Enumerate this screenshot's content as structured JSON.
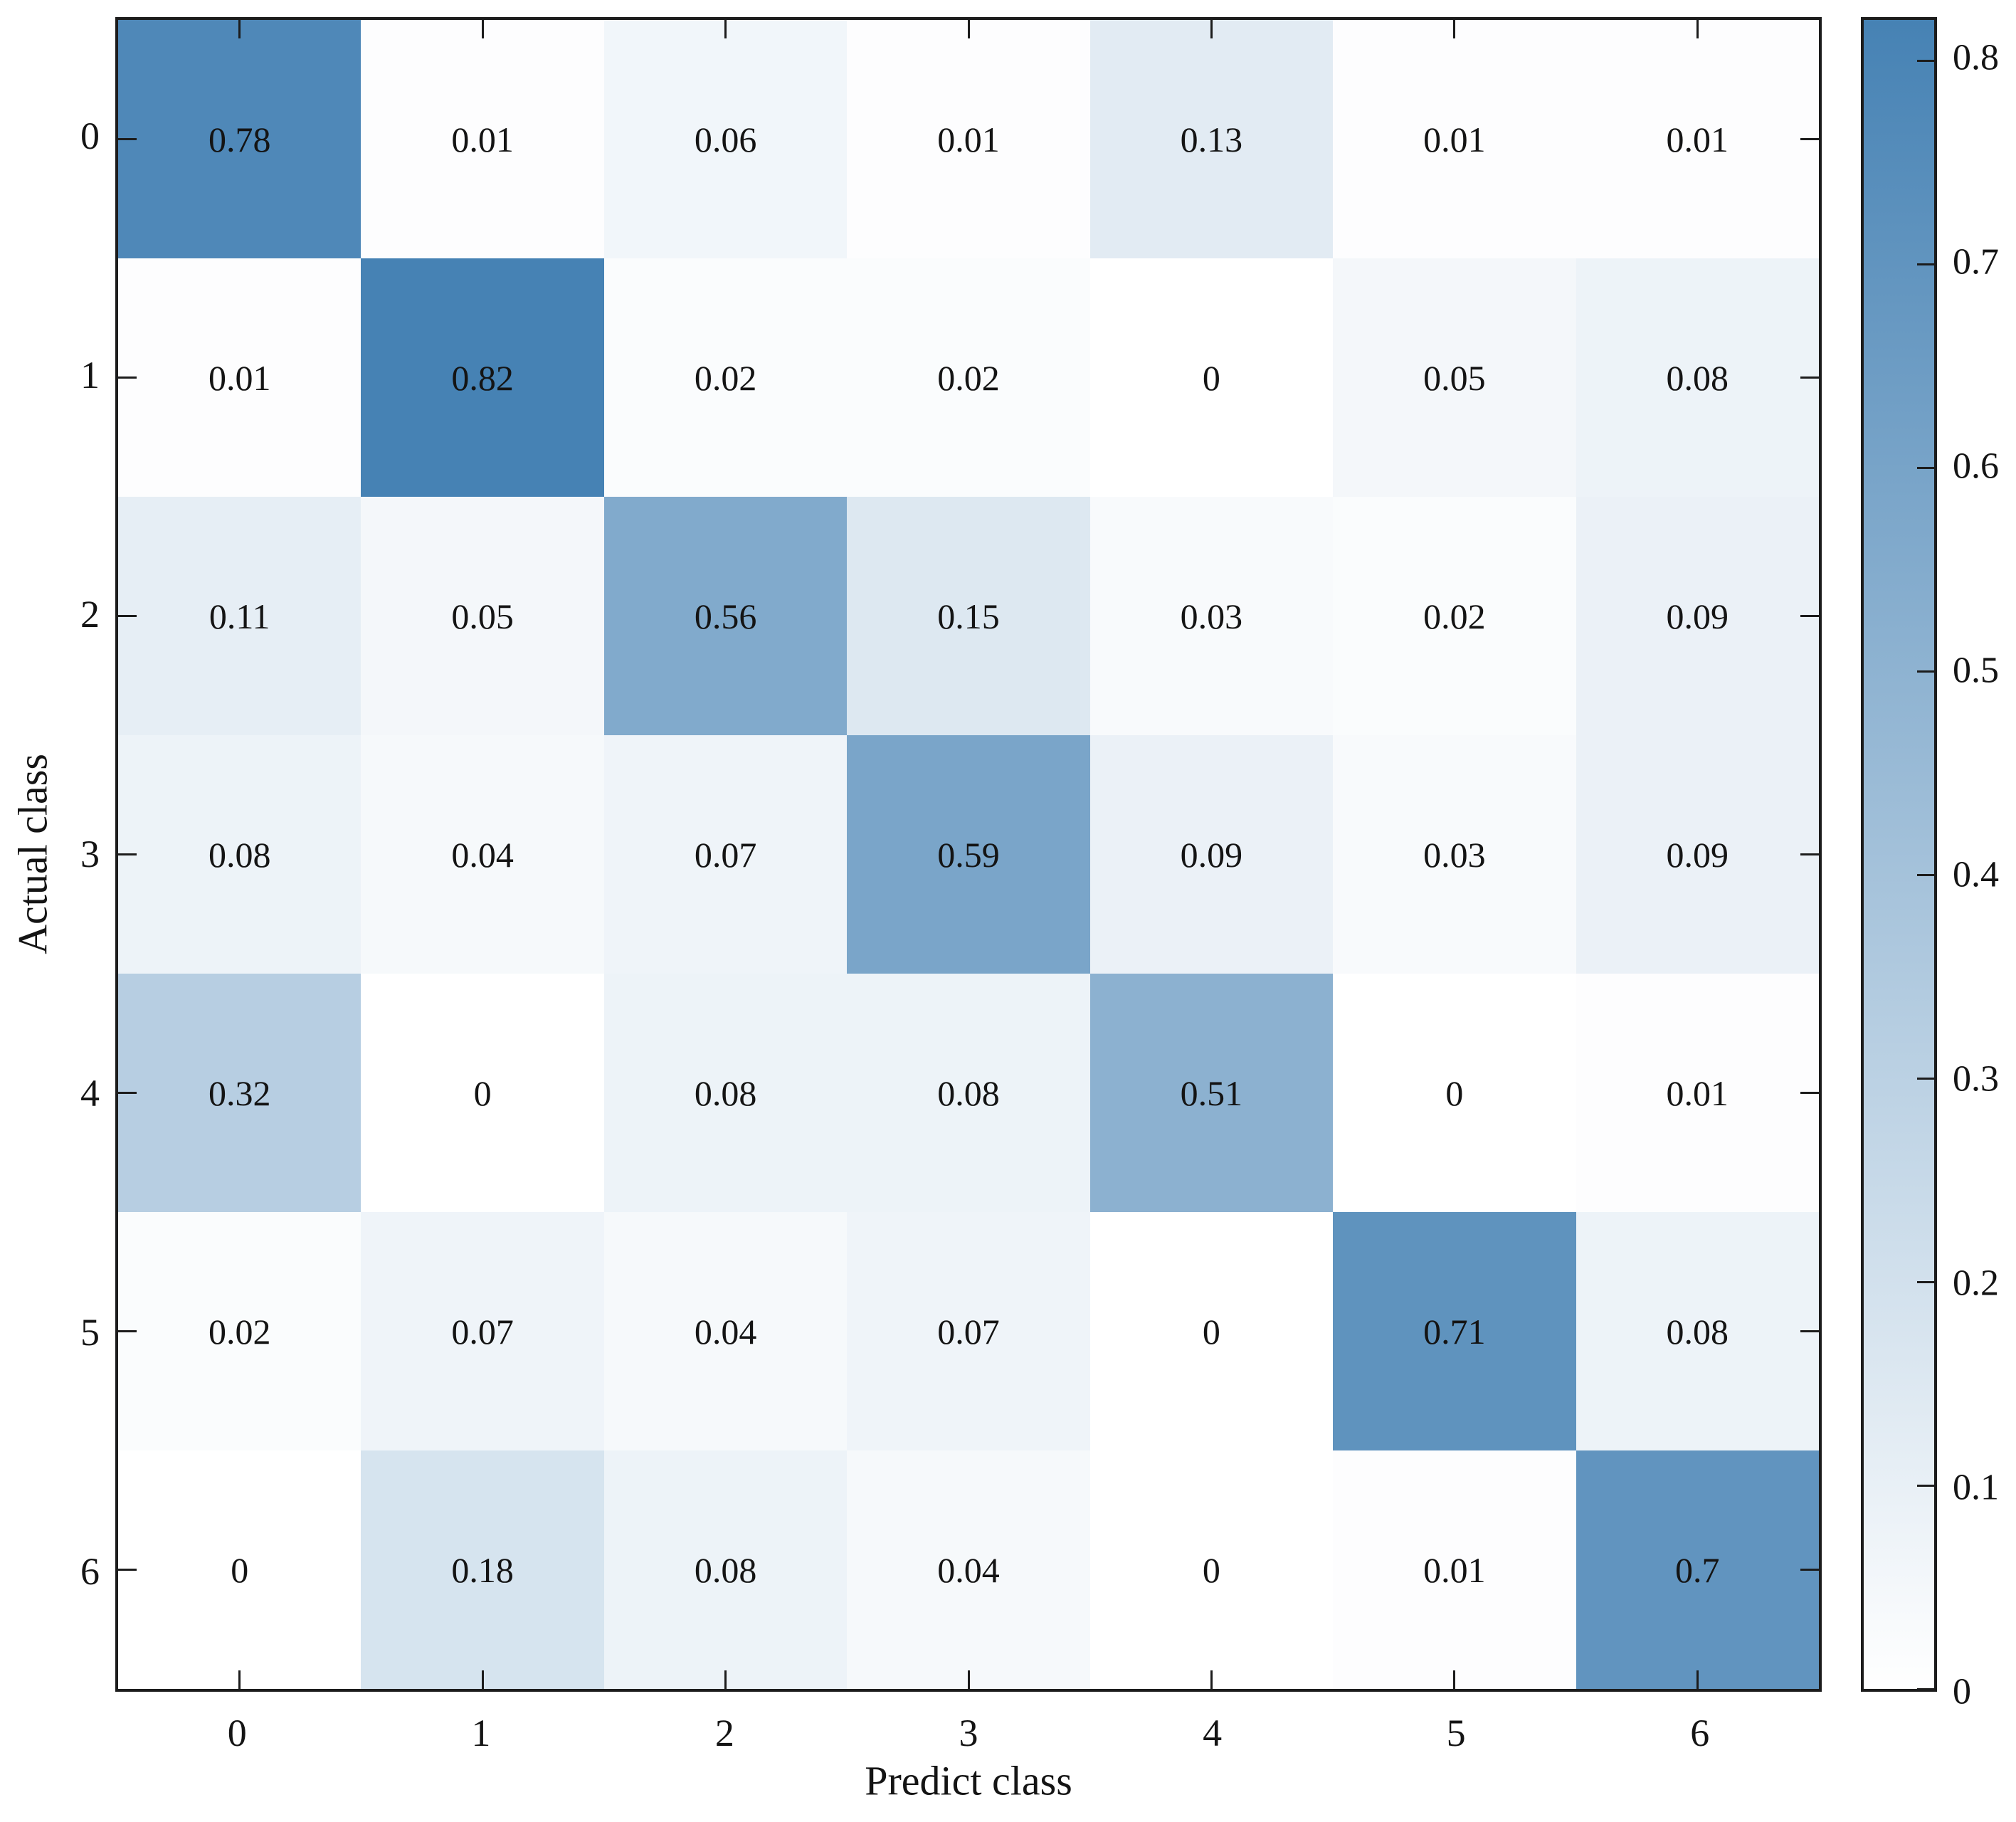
{
  "chart_data": {
    "type": "heatmap",
    "title": "",
    "xlabel": "Predict class",
    "ylabel": "Actual class",
    "x_categories": [
      "0",
      "1",
      "2",
      "3",
      "4",
      "5",
      "6"
    ],
    "y_categories": [
      "0",
      "1",
      "2",
      "3",
      "4",
      "5",
      "6"
    ],
    "matrix": [
      [
        0.78,
        0.01,
        0.06,
        0.01,
        0.13,
        0.01,
        0.01
      ],
      [
        0.01,
        0.82,
        0.02,
        0.02,
        0,
        0.05,
        0.08
      ],
      [
        0.11,
        0.05,
        0.56,
        0.15,
        0.03,
        0.02,
        0.09
      ],
      [
        0.08,
        0.04,
        0.07,
        0.59,
        0.09,
        0.03,
        0.09
      ],
      [
        0.32,
        0,
        0.08,
        0.08,
        0.51,
        0,
        0.01
      ],
      [
        0.02,
        0.07,
        0.04,
        0.07,
        0,
        0.71,
        0.08
      ],
      [
        0,
        0.18,
        0.08,
        0.04,
        0,
        0.01,
        0.7
      ]
    ],
    "vmin": 0,
    "vmax": 0.82,
    "colormap": {
      "name": "white-to-steelblue",
      "low": "#ffffff",
      "high": "#4682b4"
    },
    "colorbar": {
      "position": "right",
      "ticks": [
        0,
        0.1,
        0.2,
        0.3,
        0.4,
        0.5,
        0.6,
        0.7,
        0.8
      ],
      "tick_labels": [
        "0",
        "0.1",
        "0.2",
        "0.3",
        "0.4",
        "0.5",
        "0.6",
        "0.7",
        "0.8"
      ]
    },
    "grid": false,
    "tick_direction": "in",
    "legend_position": "colorbar-right"
  }
}
